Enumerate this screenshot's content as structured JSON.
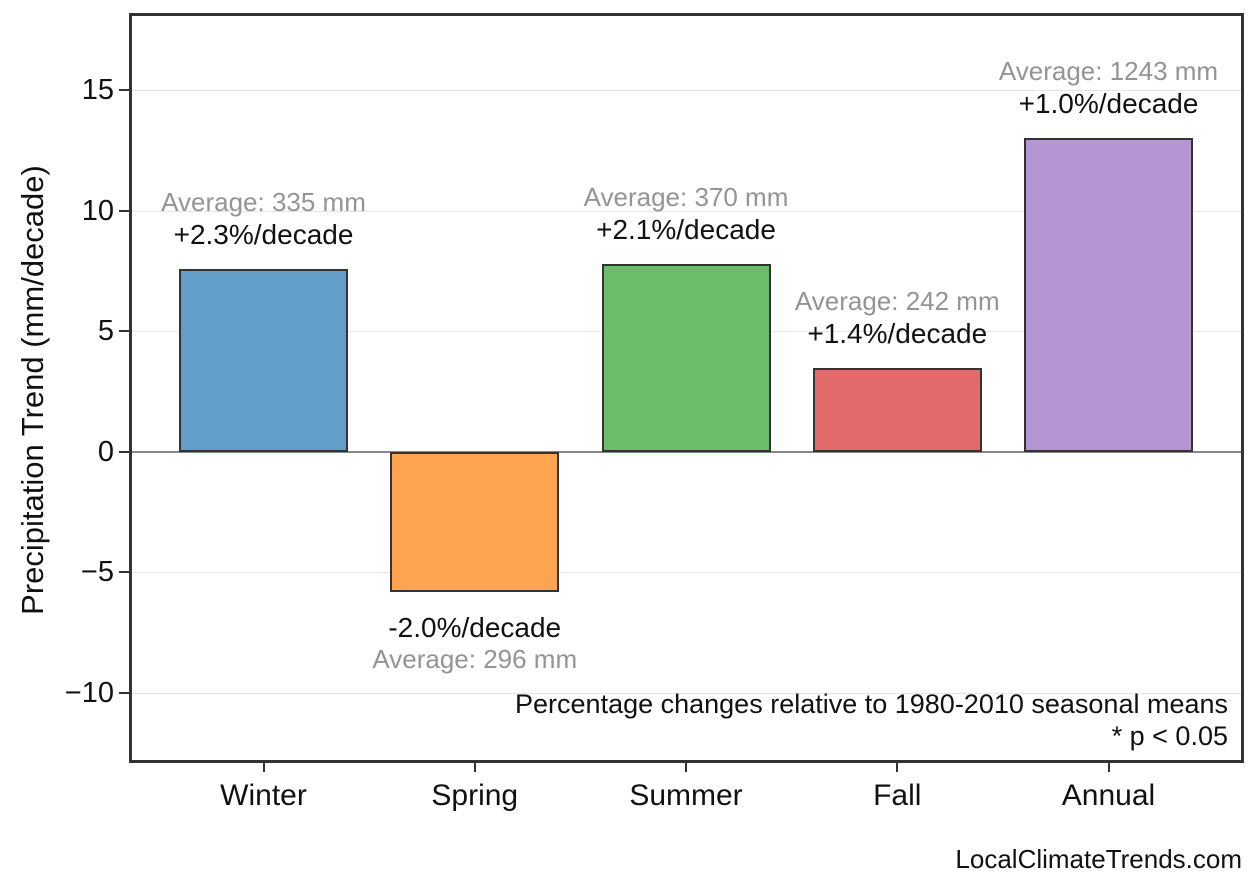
{
  "figure": {
    "footer": "LocalClimateTrends.com"
  },
  "chart_data": {
    "type": "bar",
    "title": "",
    "xlabel": "",
    "ylabel": "Precipitation Trend (mm/decade)",
    "categories": [
      "Winter",
      "Spring",
      "Summer",
      "Fall",
      "Annual"
    ],
    "values": [
      7.6,
      -5.8,
      7.8,
      3.5,
      13.0
    ],
    "bars": [
      {
        "category": "Winter",
        "value": 7.6,
        "average_mm": 335,
        "average_label": "Average: 335 mm",
        "trend_label": "+2.3%/decade",
        "color": "#639EC9"
      },
      {
        "category": "Spring",
        "value": -5.8,
        "average_mm": 296,
        "average_label": "Average: 296 mm",
        "trend_label": "-2.0%/decade",
        "color": "#FFA552"
      },
      {
        "category": "Summer",
        "value": 7.8,
        "average_mm": 370,
        "average_label": "Average: 370 mm",
        "trend_label": "+2.1%/decade",
        "color": "#6BBC6B"
      },
      {
        "category": "Fall",
        "value": 3.5,
        "average_mm": 242,
        "average_label": "Average: 242 mm",
        "trend_label": "+1.4%/decade",
        "color": "#E26A6A"
      },
      {
        "category": "Annual",
        "value": 13.0,
        "average_mm": 1243,
        "average_label": "Average: 1243 mm",
        "trend_label": "+1.0%/decade",
        "color": "#B496D2"
      }
    ],
    "yticks": [
      15,
      10,
      5,
      0,
      -5,
      -10
    ],
    "ytick_labels": [
      "15",
      "10",
      "5",
      "0",
      "−5",
      "−10"
    ],
    "ylim": [
      -12.9,
      18.2
    ],
    "grid": true,
    "legend_position": "none",
    "annotations": [
      "Percentage changes relative to 1980-2010 seasonal means",
      "* p < 0.05"
    ],
    "colors": {
      "grid": "#e6e6e6",
      "zero_line": "#888888",
      "bar_edge": "#333333",
      "axis_border": "#333333",
      "average_text": "#949494",
      "trend_text": "#111111"
    }
  }
}
